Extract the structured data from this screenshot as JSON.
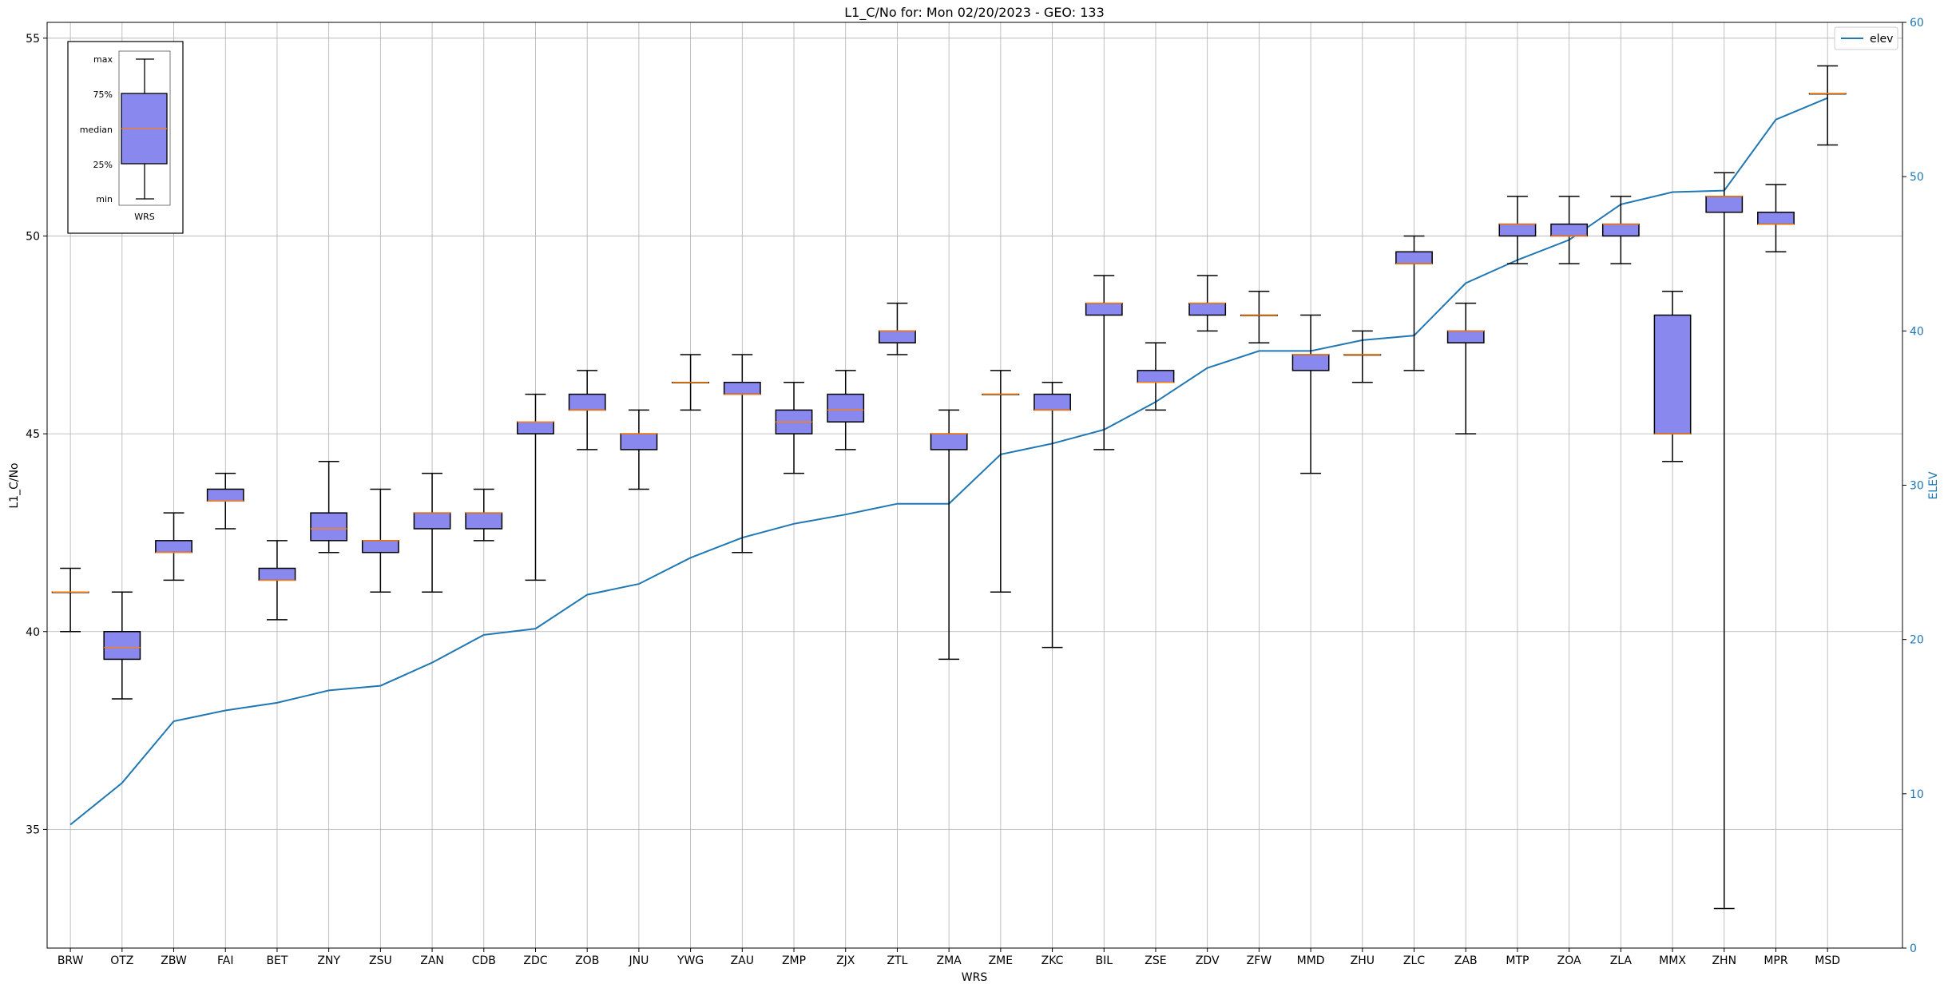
{
  "chart_data": {
    "type": "box",
    "title": "L1_C/No for: Mon 02/20/2023 - GEO: 133",
    "xlabel": "WRS",
    "ylabel": "L1_C/No",
    "y2label": "ELEV",
    "ylim": [
      32,
      55.4
    ],
    "y2lim": [
      0,
      60
    ],
    "yticks": [
      35,
      40,
      45,
      50,
      55
    ],
    "y2ticks": [
      0,
      10,
      20,
      30,
      40,
      50,
      60
    ],
    "grid": true,
    "legend": {
      "position": "top-right",
      "entries": [
        "elev"
      ]
    },
    "colors": {
      "box_fill": "#8888ee",
      "median": "#ff7f0e",
      "line": "#1f77b4",
      "whisker": "#000000"
    },
    "categories": [
      "BRW",
      "OTZ",
      "ZBW",
      "FAI",
      "BET",
      "ZNY",
      "ZSU",
      "ZAN",
      "CDB",
      "ZDC",
      "ZOB",
      "JNU",
      "YWG",
      "ZAU",
      "ZMP",
      "ZJX",
      "ZTL",
      "ZMA",
      "ZME",
      "ZKC",
      "BIL",
      "ZSE",
      "ZDV",
      "ZFW",
      "MMD",
      "ZHU",
      "ZLC",
      "ZAB",
      "MTP",
      "ZOA",
      "ZLA",
      "MMX",
      "ZHN",
      "MPR",
      "MSD"
    ],
    "boxes": [
      {
        "min": 40.0,
        "q1": 41.0,
        "median": 41.0,
        "q3": 41.0,
        "max": 41.6
      },
      {
        "min": 38.3,
        "q1": 39.3,
        "median": 39.6,
        "q3": 40.0,
        "max": 41.0
      },
      {
        "min": 41.3,
        "q1": 42.0,
        "median": 42.0,
        "q3": 42.3,
        "max": 43.0
      },
      {
        "min": 42.6,
        "q1": 43.3,
        "median": 43.3,
        "q3": 43.6,
        "max": 44.0
      },
      {
        "min": 40.3,
        "q1": 41.3,
        "median": 41.3,
        "q3": 41.6,
        "max": 42.3
      },
      {
        "min": 42.0,
        "q1": 42.3,
        "median": 42.6,
        "q3": 43.0,
        "max": 44.3
      },
      {
        "min": 41.0,
        "q1": 42.0,
        "median": 42.3,
        "q3": 42.3,
        "max": 43.6
      },
      {
        "min": 41.0,
        "q1": 42.6,
        "median": 43.0,
        "q3": 43.0,
        "max": 44.0
      },
      {
        "min": 42.3,
        "q1": 42.6,
        "median": 43.0,
        "q3": 43.0,
        "max": 43.6
      },
      {
        "min": 41.3,
        "q1": 45.0,
        "median": 45.3,
        "q3": 45.3,
        "max": 46.0
      },
      {
        "min": 44.6,
        "q1": 45.6,
        "median": 45.6,
        "q3": 46.0,
        "max": 46.6
      },
      {
        "min": 43.6,
        "q1": 44.6,
        "median": 45.0,
        "q3": 45.0,
        "max": 45.6
      },
      {
        "min": 45.6,
        "q1": 46.3,
        "median": 46.3,
        "q3": 46.3,
        "max": 47.0
      },
      {
        "min": 42.0,
        "q1": 46.0,
        "median": 46.0,
        "q3": 46.3,
        "max": 47.0
      },
      {
        "min": 44.0,
        "q1": 45.0,
        "median": 45.3,
        "q3": 45.6,
        "max": 46.3
      },
      {
        "min": 44.6,
        "q1": 45.3,
        "median": 45.6,
        "q3": 46.0,
        "max": 46.6
      },
      {
        "min": 47.0,
        "q1": 47.3,
        "median": 47.6,
        "q3": 47.6,
        "max": 48.3
      },
      {
        "min": 39.3,
        "q1": 44.6,
        "median": 45.0,
        "q3": 45.0,
        "max": 45.6
      },
      {
        "min": 41.0,
        "q1": 46.0,
        "median": 46.0,
        "q3": 46.0,
        "max": 46.6
      },
      {
        "min": 39.6,
        "q1": 45.6,
        "median": 45.6,
        "q3": 46.0,
        "max": 46.3
      },
      {
        "min": 44.6,
        "q1": 48.0,
        "median": 48.3,
        "q3": 48.3,
        "max": 49.0
      },
      {
        "min": 45.6,
        "q1": 46.3,
        "median": 46.3,
        "q3": 46.6,
        "max": 47.3
      },
      {
        "min": 47.6,
        "q1": 48.0,
        "median": 48.3,
        "q3": 48.3,
        "max": 49.0
      },
      {
        "min": 47.3,
        "q1": 48.0,
        "median": 48.0,
        "q3": 48.0,
        "max": 48.6
      },
      {
        "min": 44.0,
        "q1": 46.6,
        "median": 47.0,
        "q3": 47.0,
        "max": 48.0
      },
      {
        "min": 46.3,
        "q1": 47.0,
        "median": 47.0,
        "q3": 47.0,
        "max": 47.6
      },
      {
        "min": 46.6,
        "q1": 49.3,
        "median": 49.3,
        "q3": 49.6,
        "max": 50.0
      },
      {
        "min": 45.0,
        "q1": 47.3,
        "median": 47.6,
        "q3": 47.6,
        "max": 48.3
      },
      {
        "min": 49.3,
        "q1": 50.0,
        "median": 50.3,
        "q3": 50.3,
        "max": 51.0
      },
      {
        "min": 49.3,
        "q1": 50.0,
        "median": 50.0,
        "q3": 50.3,
        "max": 51.0
      },
      {
        "min": 49.3,
        "q1": 50.0,
        "median": 50.3,
        "q3": 50.3,
        "max": 51.0
      },
      {
        "min": 44.3,
        "q1": 45.0,
        "median": 45.0,
        "q3": 48.0,
        "max": 48.6
      },
      {
        "min": 33.0,
        "q1": 50.6,
        "median": 51.0,
        "q3": 51.0,
        "max": 51.6
      },
      {
        "min": 49.6,
        "q1": 50.3,
        "median": 50.3,
        "q3": 50.6,
        "max": 51.3
      },
      {
        "min": 52.3,
        "q1": 53.6,
        "median": 53.6,
        "q3": 53.6,
        "max": 54.3
      }
    ],
    "elev_series": {
      "name": "elev",
      "values": [
        8.0,
        10.7,
        14.7,
        15.4,
        15.9,
        16.7,
        17.0,
        18.5,
        20.3,
        20.7,
        22.9,
        23.6,
        25.3,
        26.6,
        27.5,
        28.1,
        28.8,
        28.8,
        32.0,
        32.7,
        33.6,
        35.4,
        37.6,
        38.7,
        38.7,
        39.4,
        39.7,
        43.1,
        44.6,
        45.9,
        48.2,
        49.0,
        49.1,
        53.7,
        55.1
      ]
    },
    "inset": {
      "labels": [
        "max",
        "75%",
        "median",
        "25%",
        "min"
      ],
      "xlabel": "WRS"
    }
  }
}
